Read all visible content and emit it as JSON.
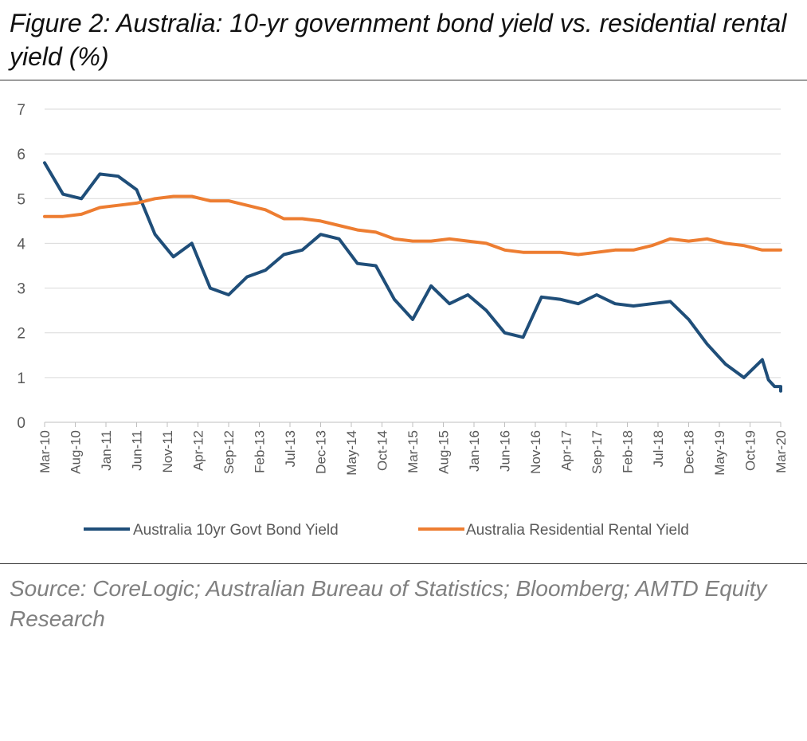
{
  "figure": {
    "title": "Figure 2: Australia: 10-yr government bond yield vs. residential rental yield (%)",
    "source": "Source: CoreLogic; Australian Bureau of Statistics; Bloomberg; AMTD Equity Research"
  },
  "colors": {
    "bond": "#1f4e79",
    "rental": "#ed7d31",
    "grid": "#d9d9d9",
    "tick_text": "#595959"
  },
  "chart_data": {
    "type": "line",
    "title": "Figure 2: Australia: 10-yr government bond yield vs. residential rental yield (%)",
    "xlabel": "",
    "ylabel": "",
    "ylim": [
      0,
      7
    ],
    "yticks": [
      "0",
      "1",
      "2",
      "3",
      "4",
      "5",
      "6",
      "7"
    ],
    "grid": "horizontal",
    "legend_position": "bottom",
    "x_range": [
      "Mar-10",
      "Mar-20"
    ],
    "x_tick_labels": [
      "Mar-10",
      "Aug-10",
      "Jan-11",
      "Jun-11",
      "Nov-11",
      "Apr-12",
      "Sep-12",
      "Feb-13",
      "Jul-13",
      "Dec-13",
      "May-14",
      "Oct-14",
      "Mar-15",
      "Aug-15",
      "Jan-16",
      "Jun-16",
      "Nov-16",
      "Apr-17",
      "Sep-17",
      "Feb-18",
      "Jul-18",
      "Dec-18",
      "May-19",
      "Oct-19",
      "Mar-20"
    ],
    "series": [
      {
        "name": "Australia 10yr Govt Bond Yield",
        "color": "#1f4e79",
        "points": [
          [
            "Mar-10",
            5.8
          ],
          [
            "Jun-10",
            5.1
          ],
          [
            "Sep-10",
            5.0
          ],
          [
            "Dec-10",
            5.55
          ],
          [
            "Mar-11",
            5.5
          ],
          [
            "Jun-11",
            5.2
          ],
          [
            "Sep-11",
            4.2
          ],
          [
            "Dec-11",
            3.7
          ],
          [
            "Mar-12",
            4.0
          ],
          [
            "Jun-12",
            3.0
          ],
          [
            "Sep-12",
            2.85
          ],
          [
            "Dec-12",
            3.25
          ],
          [
            "Mar-13",
            3.4
          ],
          [
            "Jun-13",
            3.75
          ],
          [
            "Sep-13",
            3.85
          ],
          [
            "Dec-13",
            4.2
          ],
          [
            "Mar-14",
            4.1
          ],
          [
            "Jun-14",
            3.55
          ],
          [
            "Sep-14",
            3.5
          ],
          [
            "Dec-14",
            2.75
          ],
          [
            "Mar-15",
            2.3
          ],
          [
            "Jun-15",
            3.05
          ],
          [
            "Sep-15",
            2.65
          ],
          [
            "Dec-15",
            2.85
          ],
          [
            "Mar-16",
            2.5
          ],
          [
            "Jun-16",
            2.0
          ],
          [
            "Sep-16",
            1.9
          ],
          [
            "Dec-16",
            2.8
          ],
          [
            "Mar-17",
            2.75
          ],
          [
            "Jun-17",
            2.65
          ],
          [
            "Sep-17",
            2.85
          ],
          [
            "Dec-17",
            2.65
          ],
          [
            "Mar-18",
            2.6
          ],
          [
            "Jun-18",
            2.65
          ],
          [
            "Sep-18",
            2.7
          ],
          [
            "Dec-18",
            2.3
          ],
          [
            "Mar-19",
            1.75
          ],
          [
            "Jun-19",
            1.3
          ],
          [
            "Sep-19",
            1.0
          ],
          [
            "Dec-19",
            1.4
          ],
          [
            "Jan-20",
            0.95
          ],
          [
            "Feb-20",
            0.8
          ],
          [
            "Mar-20",
            0.8
          ],
          [
            "Mar-20",
            0.7
          ]
        ]
      },
      {
        "name": "Australia Residential Rental Yield",
        "color": "#ed7d31",
        "points": [
          [
            "Mar-10",
            4.6
          ],
          [
            "Jun-10",
            4.6
          ],
          [
            "Sep-10",
            4.65
          ],
          [
            "Dec-10",
            4.8
          ],
          [
            "Mar-11",
            4.85
          ],
          [
            "Jun-11",
            4.9
          ],
          [
            "Sep-11",
            5.0
          ],
          [
            "Dec-11",
            5.05
          ],
          [
            "Mar-12",
            5.05
          ],
          [
            "Jun-12",
            4.95
          ],
          [
            "Sep-12",
            4.95
          ],
          [
            "Dec-12",
            4.85
          ],
          [
            "Mar-13",
            4.75
          ],
          [
            "Jun-13",
            4.55
          ],
          [
            "Sep-13",
            4.55
          ],
          [
            "Dec-13",
            4.5
          ],
          [
            "Mar-14",
            4.4
          ],
          [
            "Jun-14",
            4.3
          ],
          [
            "Sep-14",
            4.25
          ],
          [
            "Dec-14",
            4.1
          ],
          [
            "Mar-15",
            4.05
          ],
          [
            "Jun-15",
            4.05
          ],
          [
            "Sep-15",
            4.1
          ],
          [
            "Dec-15",
            4.05
          ],
          [
            "Mar-16",
            4.0
          ],
          [
            "Jun-16",
            3.85
          ],
          [
            "Sep-16",
            3.8
          ],
          [
            "Dec-16",
            3.8
          ],
          [
            "Mar-17",
            3.8
          ],
          [
            "Jun-17",
            3.75
          ],
          [
            "Sep-17",
            3.8
          ],
          [
            "Dec-17",
            3.85
          ],
          [
            "Mar-18",
            3.85
          ],
          [
            "Jun-18",
            3.95
          ],
          [
            "Sep-18",
            4.1
          ],
          [
            "Dec-18",
            4.05
          ],
          [
            "Mar-19",
            4.1
          ],
          [
            "Jun-19",
            4.0
          ],
          [
            "Sep-19",
            3.95
          ],
          [
            "Dec-19",
            3.85
          ],
          [
            "Mar-20",
            3.85
          ]
        ]
      }
    ]
  }
}
